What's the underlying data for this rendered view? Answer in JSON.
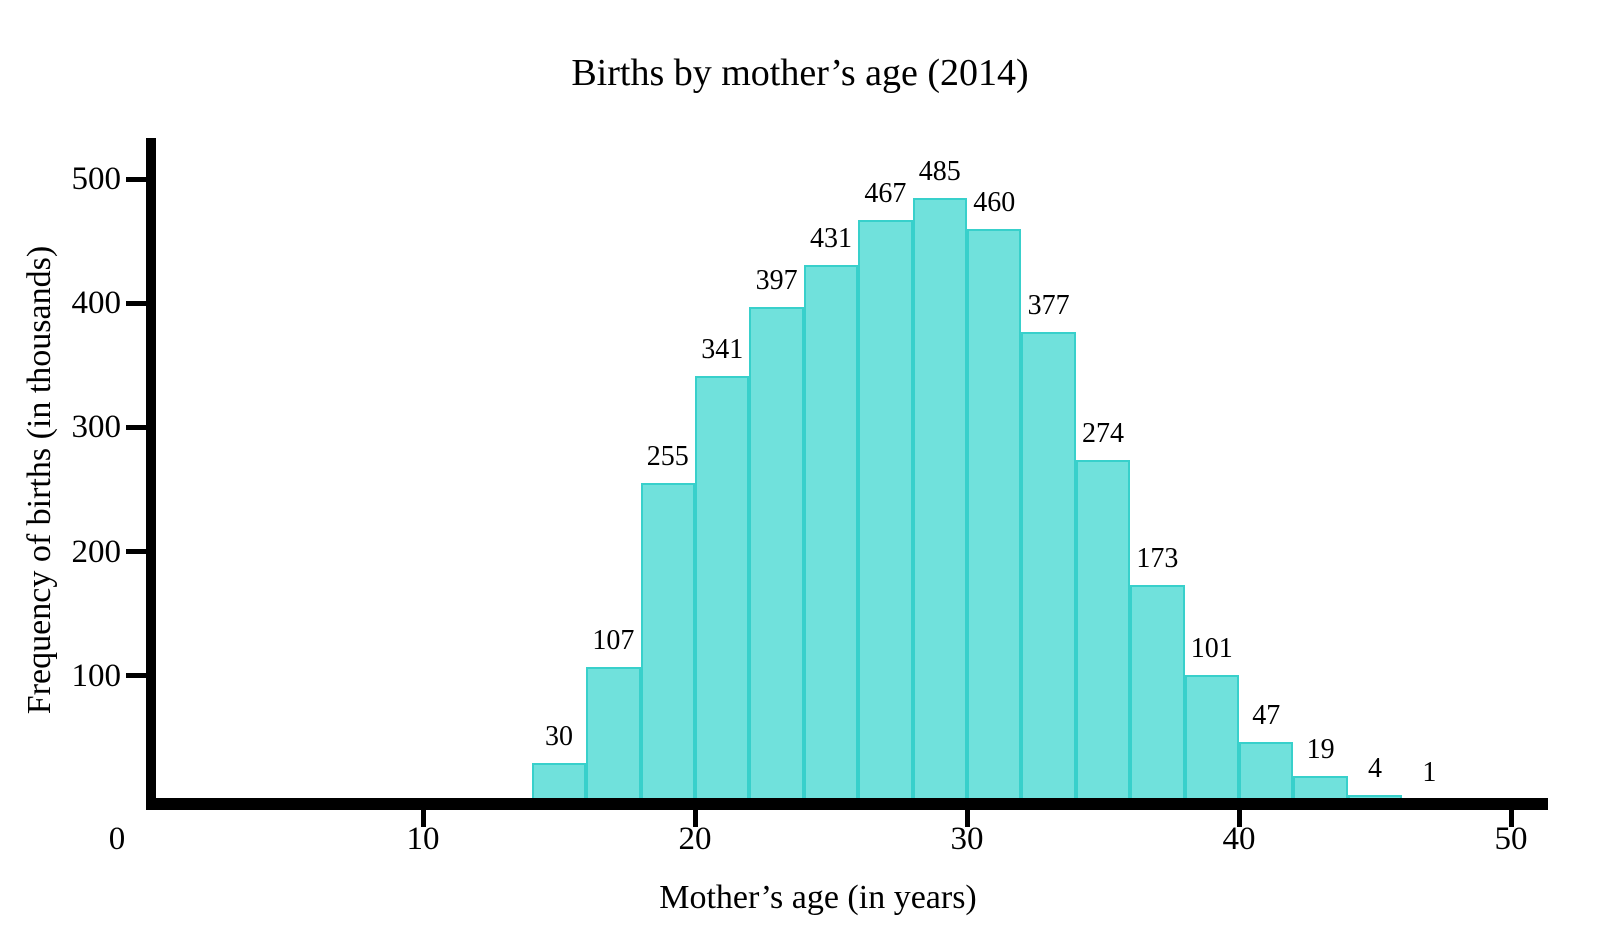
{
  "chart_data": {
    "type": "bar",
    "subtype": "histogram",
    "title": "Births by mother’s age (2014)",
    "xlabel": "Mother’s age (in years)",
    "ylabel": "Frequency of births (in thousands)",
    "bin_start": 14,
    "bin_width": 2,
    "bin_edges": [
      14,
      16,
      18,
      20,
      22,
      24,
      26,
      28,
      30,
      32,
      34,
      36,
      38,
      40,
      42,
      44,
      46,
      48
    ],
    "values": [
      30,
      107,
      255,
      341,
      397,
      431,
      467,
      485,
      460,
      377,
      274,
      173,
      101,
      47,
      19,
      4,
      1
    ],
    "x_origin_label": "0",
    "x_ticks": [
      10,
      20,
      30,
      40,
      50
    ],
    "y_ticks": [
      100,
      200,
      300,
      400,
      500
    ],
    "xlim": [
      0,
      51.3
    ],
    "ylim": [
      0,
      533
    ],
    "grid": false,
    "legend": "none",
    "bar_fill": "#70E1DC",
    "bar_stroke": "#38D0CB",
    "axis_color": "#000000",
    "text_color": "#000000"
  }
}
